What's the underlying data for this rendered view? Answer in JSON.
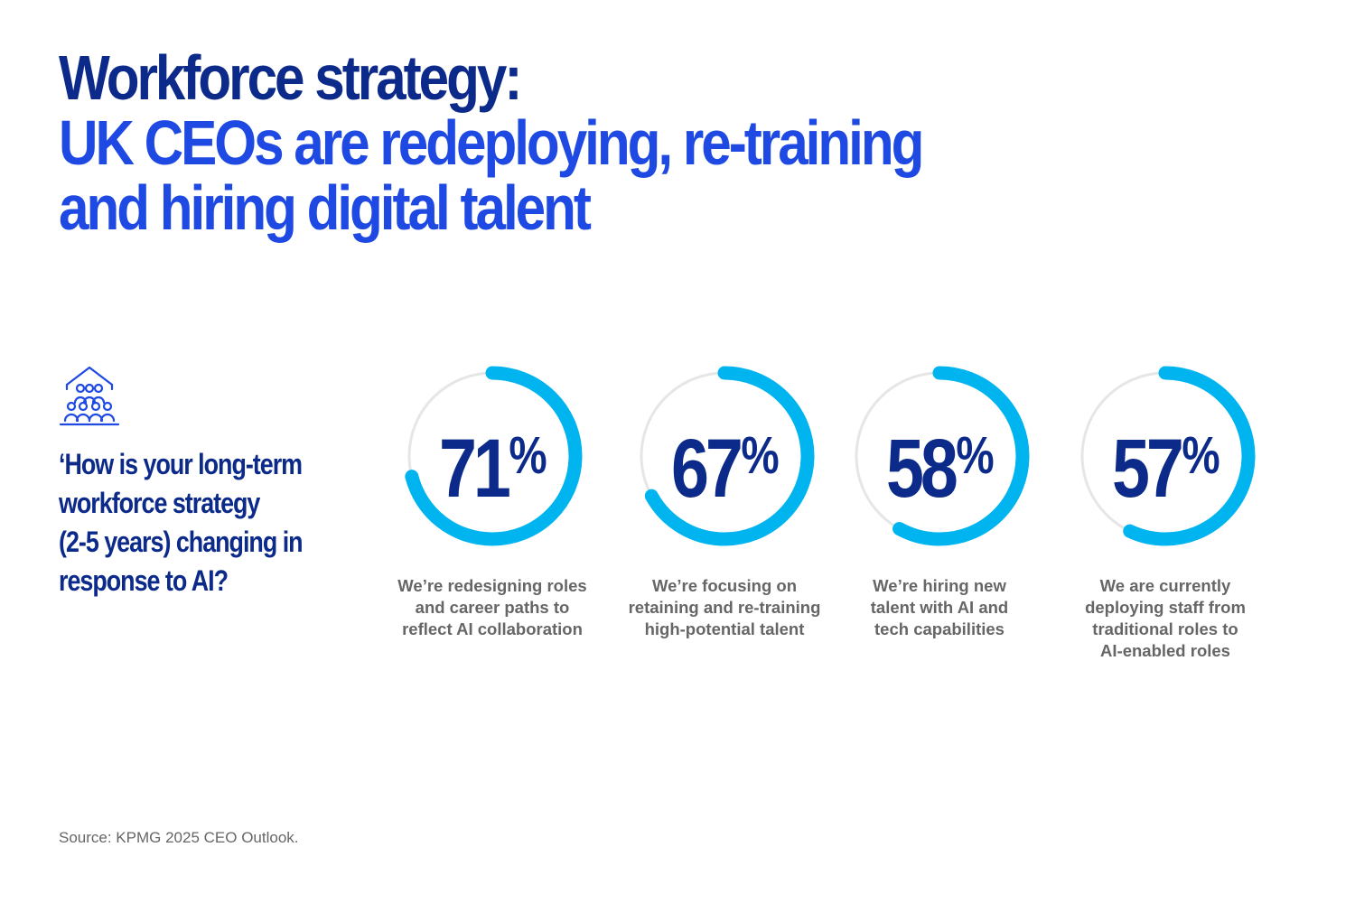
{
  "title": {
    "line1": "Workforce strategy:",
    "line2": "UK CEOs are redeploying, re-training",
    "line3": "and hiring digital talent"
  },
  "question": {
    "lines": [
      "‘How is your long-term",
      "workforce strategy",
      "(2-5 years) changing in",
      "response to AI?"
    ]
  },
  "icon": "people-group-icon",
  "colors": {
    "title_dark": "#0c2a8a",
    "title_accent": "#1e49e2",
    "donut_fill": "#00b4f0",
    "donut_track": "#e6e6e6",
    "caption": "#666666"
  },
  "chart_data": {
    "type": "donut",
    "unit": "%",
    "max": 100,
    "items": [
      {
        "value": 71,
        "label": "71",
        "caption": [
          "We’re redesigning roles",
          "and career paths to",
          "reflect AI collaboration"
        ]
      },
      {
        "value": 67,
        "label": "67",
        "caption": [
          "We’re focusing on",
          "retaining and re-training",
          "high-potential talent"
        ]
      },
      {
        "value": 58,
        "label": "58",
        "caption": [
          "We’re hiring new",
          "talent with AI and",
          "tech capabilities"
        ]
      },
      {
        "value": 57,
        "label": "57",
        "caption": [
          "We are currently",
          "deploying staff from",
          "traditional roles to",
          "AI-enabled roles"
        ]
      }
    ]
  },
  "source": "Source: KPMG 2025 CEO Outlook."
}
